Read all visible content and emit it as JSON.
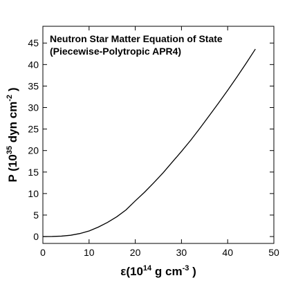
{
  "chart_data": {
    "type": "line",
    "title_lines": [
      "Neutron Star Matter Equation of State",
      "(Piecewise-Polytropic APR4)"
    ],
    "xlabel_parts": [
      "ε(10",
      "14",
      " g cm",
      "-3",
      " )"
    ],
    "ylabel_parts": [
      "P (10",
      "35",
      " dyn cm",
      "-2",
      " )"
    ],
    "x": [
      0,
      2,
      4,
      6,
      8,
      10,
      12,
      14,
      16,
      18,
      20,
      22,
      24,
      26,
      28,
      30,
      32,
      34,
      36,
      38,
      40,
      42,
      44,
      46
    ],
    "values": [
      0,
      0.02,
      0.1,
      0.3,
      0.7,
      1.3,
      2.2,
      3.3,
      4.6,
      6.2,
      8.3,
      10.3,
      12.5,
      14.8,
      17.3,
      19.8,
      22.4,
      25.2,
      28.1,
      31.0,
      34.0,
      37.1,
      40.3,
      43.6
    ],
    "color": "#000000",
    "xlim": [
      0,
      50
    ],
    "xticks": [
      0,
      10,
      20,
      30,
      40,
      50
    ],
    "ylim": [
      -1.6,
      48.9
    ],
    "yticks": [
      0,
      5,
      10,
      15,
      20,
      25,
      30,
      35,
      40,
      45
    ]
  }
}
